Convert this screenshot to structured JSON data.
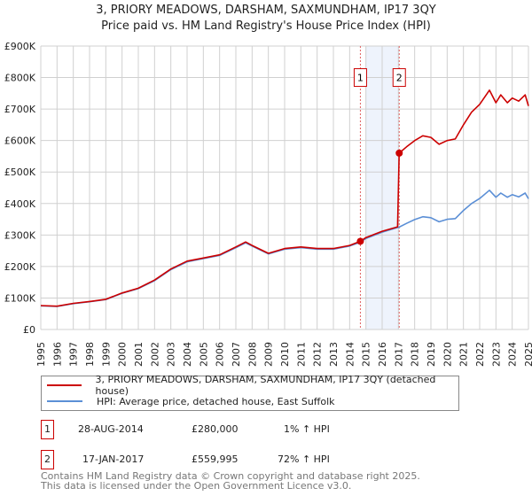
{
  "chart_data": {
    "type": "line",
    "title": "3, PRIORY MEADOWS, DARSHAM, SAXMUNDHAM, IP17 3QY",
    "subtitle": "Price paid vs. HM Land Registry's House Price Index (HPI)",
    "xlim": [
      1995,
      2025
    ],
    "ylim": [
      0,
      900000
    ],
    "x_ticks": [
      "1995",
      "1996",
      "1997",
      "1998",
      "1999",
      "2000",
      "2001",
      "2002",
      "2003",
      "2004",
      "2005",
      "2006",
      "2007",
      "2008",
      "2009",
      "2010",
      "2011",
      "2012",
      "2013",
      "2014",
      "2015",
      "2016",
      "2017",
      "2018",
      "2019",
      "2020",
      "2021",
      "2022",
      "2023",
      "2024",
      "2025"
    ],
    "y_ticks": [
      {
        "v": 0,
        "label": "£0"
      },
      {
        "v": 100000,
        "label": "£100K"
      },
      {
        "v": 200000,
        "label": "£200K"
      },
      {
        "v": 300000,
        "label": "£300K"
      },
      {
        "v": 400000,
        "label": "£400K"
      },
      {
        "v": 500000,
        "label": "£500K"
      },
      {
        "v": 600000,
        "label": "£600K"
      },
      {
        "v": 700000,
        "label": "£700K"
      },
      {
        "v": 800000,
        "label": "£800K"
      },
      {
        "v": 900000,
        "label": "£900K"
      }
    ],
    "grid": true,
    "series": [
      {
        "name": "3, PRIORY MEADOWS, DARSHAM, SAXMUNDHAM, IP17 3QY (detached house)",
        "color": "#cc0000",
        "x": [
          1995,
          1996,
          1997,
          1998,
          1999,
          2000,
          2001,
          2002,
          2003,
          2004,
          2005,
          2006,
          2007,
          2007.6,
          2008,
          2009,
          2010,
          2011,
          2012,
          2013,
          2014,
          2014.66,
          2015,
          2016,
          2016.95,
          2017.05,
          2017.5,
          2018,
          2018.5,
          2019,
          2019.5,
          2020,
          2020.5,
          2021,
          2021.5,
          2022,
          2022.6,
          2023,
          2023.3,
          2023.7,
          2024,
          2024.4,
          2024.8,
          2025
        ],
        "y": [
          76000,
          74000,
          83000,
          89000,
          96000,
          116000,
          131000,
          157000,
          192000,
          217000,
          227000,
          237000,
          262000,
          278000,
          267000,
          242000,
          257000,
          262000,
          257000,
          257000,
          267000,
          280000,
          292000,
          312000,
          326000,
          559995,
          580000,
          600000,
          615000,
          610000,
          588000,
          600000,
          605000,
          650000,
          690000,
          715000,
          760000,
          720000,
          745000,
          720000,
          735000,
          725000,
          745000,
          710000
        ]
      },
      {
        "name": "HPI: Average price, detached house, East Suffolk",
        "color": "#5b8fd6",
        "x": [
          1995,
          1996,
          1997,
          1998,
          1999,
          2000,
          2001,
          2002,
          2003,
          2004,
          2005,
          2006,
          2007,
          2007.6,
          2008,
          2009,
          2010,
          2011,
          2012,
          2013,
          2014,
          2014.66,
          2015,
          2016,
          2017.05,
          2017.5,
          2018,
          2018.5,
          2019,
          2019.5,
          2020,
          2020.5,
          2021,
          2021.5,
          2022,
          2022.6,
          2023,
          2023.3,
          2023.7,
          2024,
          2024.4,
          2024.8,
          2025
        ],
        "y": [
          75000,
          73000,
          82000,
          88000,
          95000,
          115000,
          130000,
          155000,
          190000,
          215000,
          225000,
          235000,
          260000,
          275000,
          265000,
          240000,
          255000,
          260000,
          255000,
          255000,
          265000,
          277000,
          289000,
          309000,
          325000,
          337000,
          349000,
          358000,
          355000,
          342000,
          350000,
          352000,
          378000,
          400000,
          416000,
          442000,
          420000,
          433000,
          420000,
          428000,
          421000,
          433000,
          415000
        ]
      }
    ],
    "sales": [
      {
        "label": "1",
        "x": 2014.66,
        "y": 280000
      },
      {
        "label": "2",
        "x": 2017.05,
        "y": 559995
      }
    ],
    "legend_placement": "below"
  },
  "legend": {
    "property": "3, PRIORY MEADOWS, DARSHAM, SAXMUNDHAM, IP17 3QY (detached house)",
    "hpi": "HPI: Average price, detached house, East Suffolk"
  },
  "transactions": [
    {
      "num": "1",
      "date": "28-AUG-2014",
      "price": "£280,000",
      "hpi": "1% ↑ HPI"
    },
    {
      "num": "2",
      "date": "17-JAN-2017",
      "price": "£559,995",
      "hpi": "72% ↑ HPI"
    }
  ],
  "footer": {
    "line1": "Contains HM Land Registry data © Crown copyright and database right 2025.",
    "line2": "This data is licensed under the Open Government Licence v3.0."
  }
}
